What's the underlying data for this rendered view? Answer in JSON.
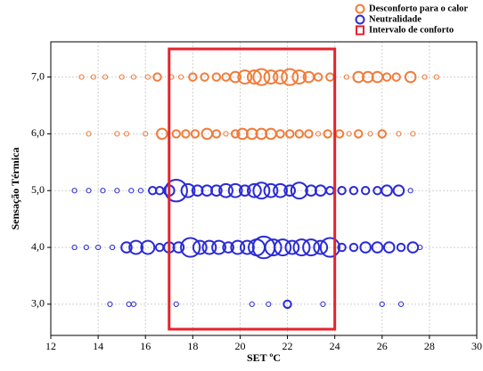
{
  "chart_data": {
    "type": "bubble",
    "x_label": "SET ºC",
    "y_label": "Sensação Térmica",
    "xlim": [
      12,
      30
    ],
    "ylim": [
      2.45,
      7.62
    ],
    "xticks": [
      12,
      14,
      16,
      18,
      20,
      22,
      24,
      26,
      28,
      30
    ],
    "yticks": [
      {
        "value": 3,
        "label": "3,0"
      },
      {
        "value": 4,
        "label": "4,0"
      },
      {
        "value": 5,
        "label": "5,0"
      },
      {
        "value": 6,
        "label": "6,0"
      },
      {
        "value": 7,
        "label": "7,0"
      }
    ],
    "grid": true,
    "legend": "top-right",
    "comfort_interval": {
      "name": "Intervalo de conforto",
      "color": "#e5232b",
      "x": [
        17,
        24
      ]
    },
    "series": [
      {
        "name": "Desconforto para o calor",
        "color": "#f07c3a",
        "x": [
          13.3,
          13.8,
          14.3,
          15.0,
          15.5,
          16.1,
          16.5,
          17.1,
          17.5,
          18.0,
          18.5,
          19.0,
          19.4,
          19.8,
          20.2,
          20.6,
          20.9,
          21.3,
          21.7,
          22.1,
          22.5,
          22.9,
          23.3,
          23.8,
          24.5,
          25.0,
          25.4,
          25.8,
          26.2,
          26.6,
          27.2,
          27.8,
          28.3,
          13.6,
          14.8,
          15.2,
          16.0,
          16.7,
          17.3,
          17.7,
          18.1,
          18.6,
          19.0,
          19.4,
          19.8,
          20.1,
          20.5,
          20.9,
          21.3,
          21.7,
          22.1,
          22.5,
          22.9,
          23.3,
          23.7,
          24.2,
          24.6,
          25.0,
          25.5,
          26.0,
          26.7,
          27.3
        ],
        "values": [
          7,
          7,
          7,
          7,
          7,
          7,
          7,
          7,
          7,
          7,
          7,
          7,
          7,
          7,
          7,
          7,
          7,
          7,
          7,
          7,
          7,
          7,
          7,
          7,
          7,
          7,
          7,
          7,
          7,
          7,
          7,
          7,
          7,
          6,
          6,
          6,
          6,
          6,
          6,
          6,
          6,
          6,
          6,
          6,
          6,
          6,
          6,
          6,
          6,
          6,
          6,
          6,
          6,
          6,
          6,
          6,
          6,
          6,
          6,
          6,
          6,
          6
        ],
        "sizes": [
          1,
          1,
          1,
          1,
          1,
          1,
          2,
          1,
          1,
          2,
          2,
          2,
          2,
          3,
          4,
          4,
          5,
          4,
          4,
          5,
          4,
          3,
          2,
          2,
          1,
          3,
          3,
          3,
          2,
          2,
          3,
          1,
          1,
          1,
          1,
          1,
          1,
          3,
          2,
          2,
          2,
          3,
          2,
          1,
          2,
          3,
          3,
          3,
          3,
          2,
          2,
          2,
          2,
          1,
          2,
          2,
          1,
          2,
          1,
          2,
          1,
          1
        ]
      },
      {
        "name": "Neutralidade",
        "color": "#2b2bd6",
        "x": [
          13.0,
          13.6,
          14.2,
          14.8,
          15.4,
          15.8,
          16.3,
          16.6,
          17.0,
          17.3,
          17.8,
          18.2,
          18.6,
          19.0,
          19.4,
          19.8,
          20.2,
          20.6,
          20.9,
          21.3,
          21.7,
          22.1,
          22.5,
          23.0,
          23.4,
          23.8,
          24.3,
          24.8,
          25.3,
          25.8,
          26.2,
          26.7,
          27.2,
          13.0,
          13.5,
          14.0,
          14.6,
          15.2,
          15.6,
          16.1,
          16.6,
          17.0,
          17.4,
          17.9,
          18.3,
          18.7,
          19.1,
          19.5,
          19.9,
          20.3,
          20.7,
          21.0,
          21.4,
          21.8,
          22.2,
          22.6,
          23.0,
          23.4,
          23.8,
          24.3,
          24.8,
          25.3,
          25.8,
          26.3,
          26.8,
          27.3,
          27.6,
          14.5,
          15.3,
          15.5,
          17.3,
          20.5,
          21.2,
          22.0,
          23.5,
          26.0,
          26.8
        ],
        "values": [
          5,
          5,
          5,
          5,
          5,
          5,
          5,
          5,
          5,
          5,
          5,
          5,
          5,
          5,
          5,
          5,
          5,
          5,
          5,
          5,
          5,
          5,
          5,
          5,
          5,
          5,
          5,
          5,
          5,
          5,
          5,
          5,
          5,
          4,
          4,
          4,
          4,
          4,
          4,
          4,
          4,
          4,
          4,
          4,
          4,
          4,
          4,
          4,
          4,
          4,
          4,
          4,
          4,
          4,
          4,
          4,
          4,
          4,
          4,
          4,
          4,
          4,
          4,
          4,
          4,
          4,
          4,
          3,
          3,
          3,
          3,
          3,
          3,
          3,
          3,
          3,
          3
        ],
        "sizes": [
          1,
          1,
          1,
          1,
          1,
          1,
          2,
          2,
          3,
          7,
          4,
          3,
          3,
          3,
          4,
          4,
          3,
          4,
          5,
          4,
          4,
          3,
          5,
          3,
          3,
          2,
          2,
          2,
          2,
          2,
          3,
          3,
          1,
          1,
          1,
          1,
          1,
          3,
          4,
          4,
          2,
          3,
          3,
          6,
          4,
          4,
          4,
          3,
          4,
          4,
          5,
          7,
          5,
          5,
          4,
          5,
          5,
          4,
          6,
          2,
          2,
          3,
          3,
          3,
          2,
          3,
          1,
          1,
          1,
          1,
          1,
          1,
          1,
          2,
          1,
          1,
          1
        ]
      }
    ]
  }
}
